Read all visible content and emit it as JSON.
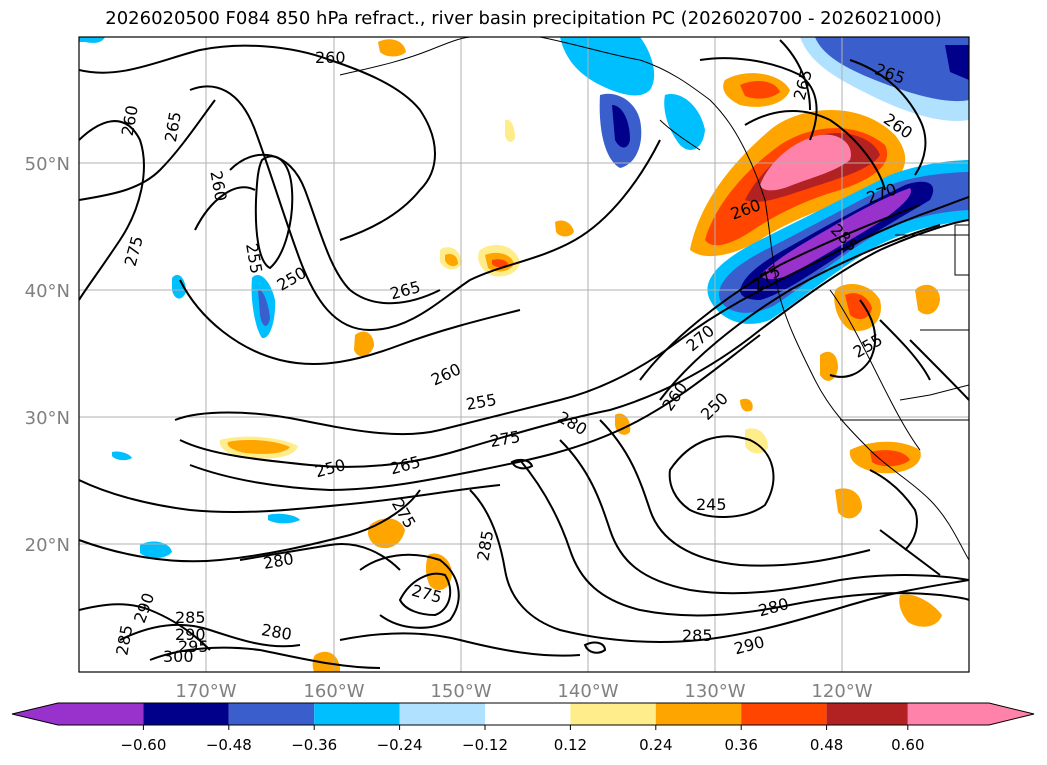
{
  "title": "2026020500 F084 850 hPa refract., river basin precipitation PC (2026020700 - 2026021000)",
  "map": {
    "lat_labels": [
      "50°N",
      "40°N",
      "30°N",
      "20°N"
    ],
    "lon_labels": [
      "170°W",
      "160°W",
      "150°W",
      "140°W",
      "130°W",
      "120°W"
    ],
    "contour_labels": [
      "260",
      "260",
      "265",
      "260",
      "275",
      "255",
      "250",
      "265",
      "260",
      "255",
      "250",
      "265",
      "275",
      "280",
      "270",
      "260",
      "250",
      "245",
      "280",
      "275",
      "285",
      "280",
      "285",
      "290",
      "300",
      "295",
      "285",
      "290",
      "280",
      "285",
      "290",
      "275",
      "265",
      "260",
      "270",
      "285",
      "275",
      "255",
      "265",
      "260"
    ],
    "axis_color": "#808080"
  },
  "colorbar": {
    "colors": [
      "#9932CC",
      "#00008B",
      "#3A5FCD",
      "#00BFFF",
      "#B0E2FF",
      "#FFFFFF",
      "#FFEC8B",
      "#FFA500",
      "#FF4500",
      "#B22222",
      "#FF82AB"
    ],
    "ticks": [
      "−0.60",
      "−0.48",
      "−0.36",
      "−0.24",
      "−0.12",
      "0.12",
      "0.24",
      "0.36",
      "0.48",
      "0.60"
    ]
  }
}
